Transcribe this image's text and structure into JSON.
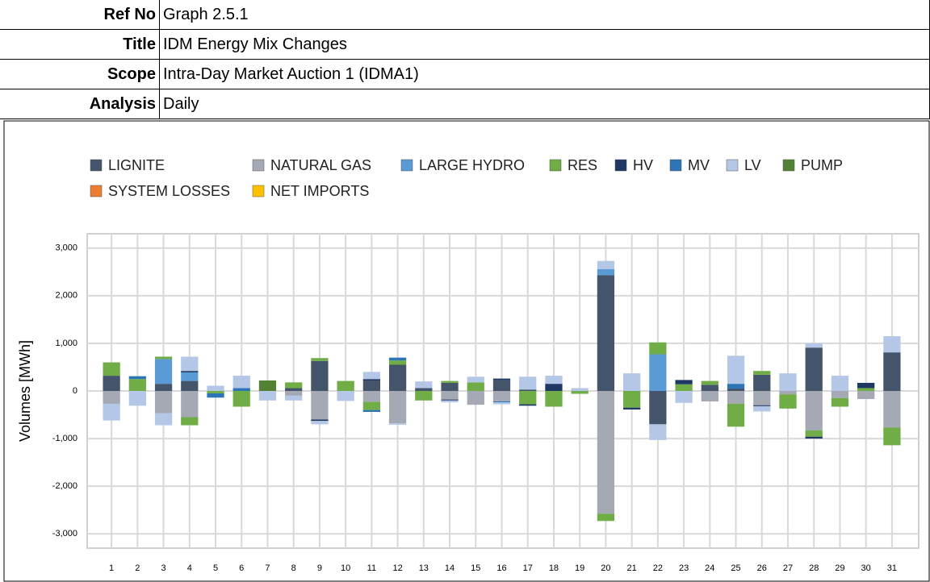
{
  "header": {
    "rows": [
      [
        "Ref No",
        "Graph 2.5.1"
      ],
      [
        "Title",
        "IDM Energy Mix Changes"
      ],
      [
        "Scope",
        "Intra-Day Market Auction 1 (IDMA1)"
      ],
      [
        "Analysis",
        "Daily"
      ]
    ]
  },
  "chart_data": {
    "type": "stacked-bar",
    "y_label": "Volumes [MWh]",
    "categories": [
      "1",
      "2",
      "3",
      "4",
      "5",
      "6",
      "7",
      "8",
      "9",
      "10",
      "11",
      "12",
      "13",
      "14",
      "15",
      "16",
      "17",
      "18",
      "19",
      "20",
      "21",
      "22",
      "23",
      "24",
      "25",
      "26",
      "27",
      "28",
      "29",
      "30",
      "31"
    ],
    "series": [
      {
        "name": "LIGNITE",
        "color": "#44546a",
        "values": [
          320,
          0,
          150,
          210,
          0,
          0,
          0,
          60,
          630,
          0,
          220,
          550,
          60,
          170,
          0,
          230,
          30,
          0,
          0,
          2430,
          0,
          -700,
          0,
          130,
          50,
          340,
          0,
          910,
          0,
          0,
          810
        ]
      },
      {
        "name": "NATURAL GAS",
        "color": "#a5a9b3",
        "values": [
          -270,
          0,
          -470,
          -550,
          0,
          0,
          0,
          -100,
          -600,
          0,
          -230,
          -680,
          0,
          -180,
          -290,
          -220,
          0,
          0,
          0,
          -2580,
          0,
          0,
          0,
          -220,
          -270,
          -300,
          -70,
          -830,
          -150,
          -170,
          -770
        ]
      },
      {
        "name": "LARGE HYDRO",
        "color": "#5b9bd5",
        "values": [
          0,
          0,
          520,
          180,
          0,
          0,
          0,
          0,
          0,
          0,
          0,
          0,
          0,
          0,
          0,
          0,
          0,
          0,
          0,
          130,
          0,
          770,
          0,
          0,
          0,
          0,
          0,
          0,
          0,
          0,
          0
        ]
      },
      {
        "name": "RES",
        "color": "#70ad47",
        "values": [
          280,
          250,
          50,
          -170,
          -50,
          -330,
          0,
          120,
          60,
          210,
          -170,
          90,
          -200,
          40,
          180,
          0,
          -280,
          -330,
          -60,
          -150,
          -350,
          250,
          140,
          80,
          -480,
          80,
          -300,
          -130,
          -180,
          60,
          -370
        ]
      },
      {
        "name": "HV",
        "color": "#1f3864",
        "values": [
          0,
          0,
          0,
          30,
          0,
          0,
          0,
          0,
          -30,
          0,
          30,
          0,
          0,
          -20,
          0,
          30,
          -30,
          150,
          0,
          0,
          -40,
          0,
          90,
          0,
          0,
          -20,
          0,
          -40,
          0,
          110,
          0
        ]
      },
      {
        "name": "MV",
        "color": "#2e75b6",
        "values": [
          0,
          60,
          0,
          0,
          -90,
          60,
          0,
          0,
          0,
          0,
          -40,
          60,
          0,
          0,
          0,
          -20,
          0,
          0,
          0,
          0,
          0,
          0,
          0,
          0,
          100,
          0,
          0,
          0,
          0,
          0,
          0
        ]
      },
      {
        "name": "LV",
        "color": "#b4c7e7",
        "values": [
          -350,
          -310,
          -250,
          300,
          110,
          260,
          -200,
          -100,
          -70,
          -210,
          150,
          -30,
          140,
          -40,
          120,
          -40,
          270,
          170,
          60,
          170,
          370,
          -330,
          -250,
          0,
          590,
          -110,
          370,
          90,
          320,
          0,
          340
        ]
      },
      {
        "name": "PUMP",
        "color": "#548235",
        "values": [
          0,
          0,
          0,
          0,
          0,
          0,
          220,
          0,
          0,
          0,
          0,
          0,
          0,
          0,
          0,
          0,
          0,
          0,
          0,
          0,
          0,
          0,
          0,
          0,
          0,
          0,
          0,
          0,
          0,
          0,
          0
        ]
      },
      {
        "name": "SYSTEM LOSSES",
        "color": "#ed7d31",
        "values": [
          0,
          0,
          0,
          0,
          0,
          0,
          0,
          0,
          0,
          0,
          0,
          0,
          0,
          0,
          0,
          0,
          0,
          0,
          0,
          0,
          0,
          0,
          0,
          0,
          0,
          0,
          0,
          0,
          0,
          0,
          0
        ]
      },
      {
        "name": "NET IMPORTS",
        "color": "#ffc000",
        "values": [
          0,
          0,
          0,
          0,
          0,
          0,
          0,
          0,
          0,
          0,
          0,
          0,
          0,
          0,
          0,
          0,
          0,
          0,
          0,
          0,
          0,
          0,
          0,
          0,
          0,
          0,
          0,
          0,
          0,
          0,
          0
        ]
      }
    ],
    "ylim": [
      -3300,
      3300
    ],
    "yticks": [
      {
        "value": -3000,
        "label": "-3,000"
      },
      {
        "value": -2000,
        "label": "-2,000"
      },
      {
        "value": -1000,
        "label": "-1,000"
      },
      0,
      {
        "value": 1000,
        "label": "1,000"
      },
      {
        "value": 2000,
        "label": "2,000"
      },
      {
        "value": 3000,
        "label": "3,000"
      }
    ],
    "grid": true
  }
}
